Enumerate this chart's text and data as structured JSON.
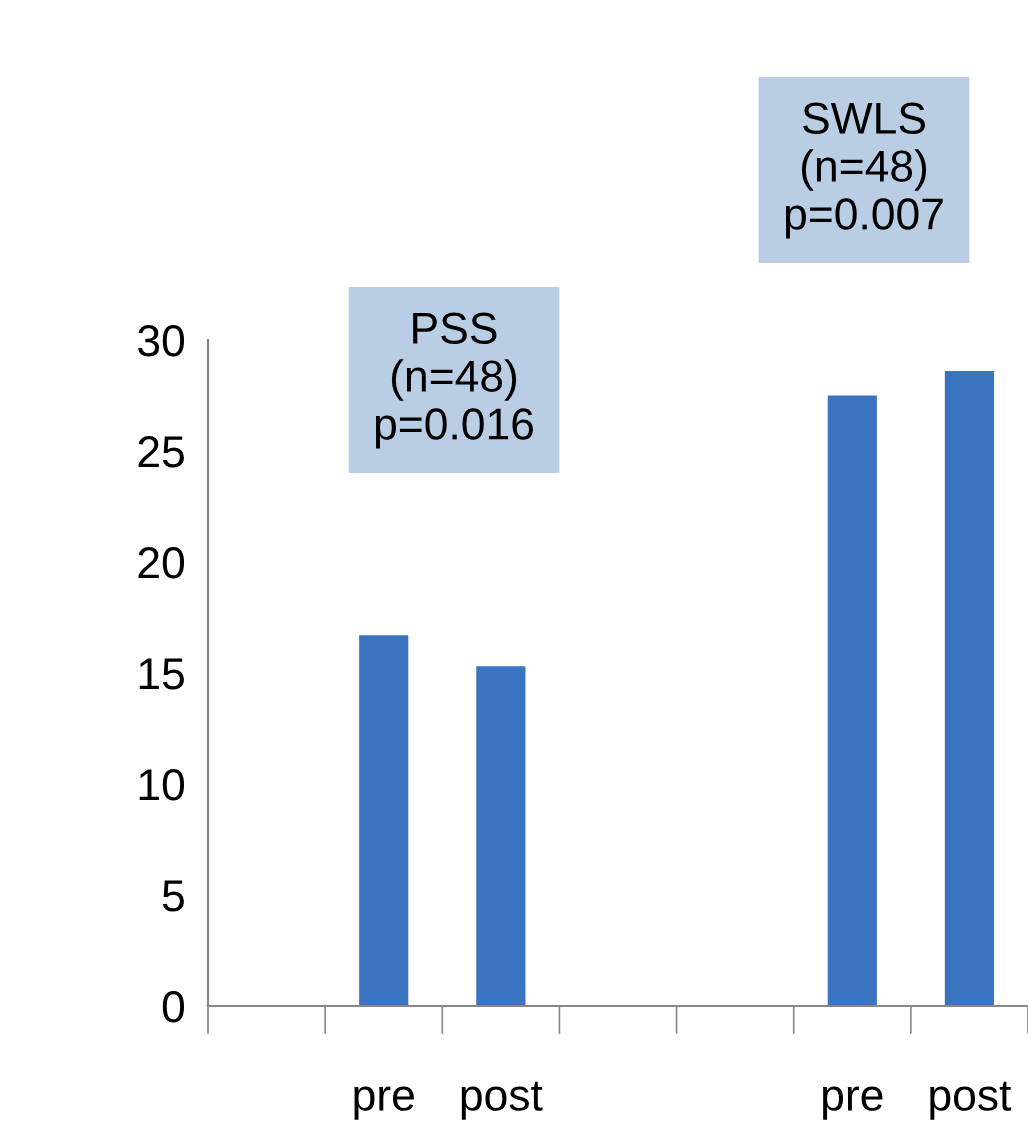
{
  "chart_data": {
    "type": "bar",
    "categories": [
      null,
      "pre",
      "post",
      null,
      null,
      "pre",
      "post"
    ],
    "values": [
      null,
      16.7,
      15.3,
      null,
      null,
      27.5,
      28.6
    ],
    "color": "#3a74c0",
    "ylim": [
      0,
      30
    ],
    "yticks": [
      0,
      5,
      10,
      15,
      20,
      25,
      30
    ],
    "grid": false,
    "annotations": [
      "PSS\n(n=48)\np=0.016",
      "SWLS\n(n=48)\np=0.007"
    ]
  }
}
